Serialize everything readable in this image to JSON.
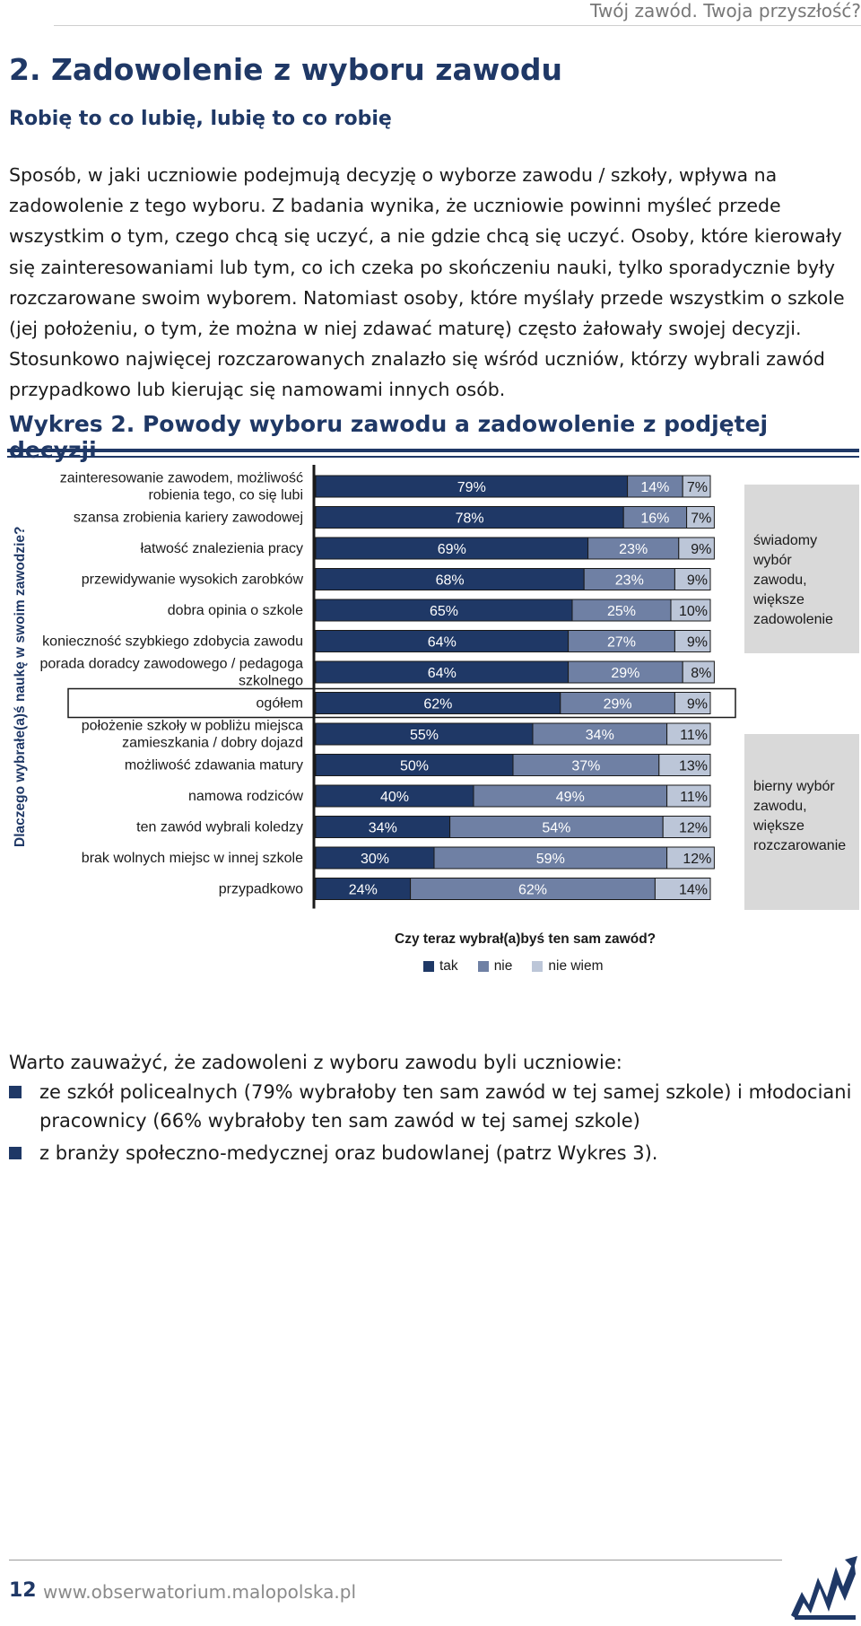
{
  "running_head": "Twój zawód. Twoja przyszłość?",
  "section_title": "2. Zadowolenie z wyboru zawodu",
  "section_subtitle": "Robię to co lubię, lubię to co robię",
  "intro_paragraph": "Sposób, w jaki uczniowie podejmują decyzję o wyborze zawodu / szkoły, wpływa na zadowolenie z tego wyboru. Z badania wynika, że uczniowie powinni myśleć przede wszystkim o tym, czego chcą się uczyć, a nie gdzie chcą się uczyć. Osoby, które kierowały się zainteresowaniami lub tym, co ich czeka po skończeniu nauki, tylko sporadycznie były rozczarowane swoim wyborem. Natomiast osoby, które myślały przede wszystkim o szkole (jej położeniu, o tym, że można w niej zdawać maturę) często żałowały swojej decyzji. Stosunkowo najwięcej rozczarowanych znalazło się wśród uczniów, którzy wybrali zawód przypadkowo lub kierując się namowami innych osób.",
  "figure_title": "Wykres 2. Powody wyboru zawodu a zadowolenie z podjętej decyzji",
  "chart_data": {
    "type": "bar",
    "orientation": "horizontal",
    "stacked": true,
    "y_axis_title": "Dlaczego wybrałe(a)ś naukę w swoim zawodzie?",
    "categories": [
      "zainteresowanie zawodem, możliwość robienia tego, co się lubi",
      "szansa zrobienia kariery zawodowej",
      "łatwość znalezienia pracy",
      "przewidywanie wysokich zarobków",
      "dobra opinia o szkole",
      "konieczność szybkiego zdobycia zawodu",
      "porada doradcy zawodowego / pedagoga szkolnego",
      "ogółem",
      "położenie szkoły w pobliżu miejsca zamieszkania / dobry dojazd",
      "możliwość zdawania matury",
      "namowa rodziców",
      "ten zawód wybrali koledzy",
      "brak wolnych miejsc w innej szkole",
      "przypadkowo"
    ],
    "category_lines": [
      [
        "zainteresowanie zawodem, możliwość",
        "robienia tego, co się lubi"
      ],
      [
        "szansa zrobienia kariery zawodowej"
      ],
      [
        "łatwość znalezienia pracy"
      ],
      [
        "przewidywanie wysokich zarobków"
      ],
      [
        "dobra opinia o szkole"
      ],
      [
        "konieczność szybkiego zdobycia zawodu"
      ],
      [
        "porada doradcy zawodowego / pedagoga",
        "szkolnego"
      ],
      [
        "ogółem"
      ],
      [
        "położenie szkoły w pobliżu miejsca",
        "zamieszkania / dobry dojazd"
      ],
      [
        "możliwość zdawania matury"
      ],
      [
        "namowa rodziców"
      ],
      [
        "ten zawód wybrali koledzy"
      ],
      [
        "brak wolnych miejsc w innej szkole"
      ],
      [
        "przypadkowo"
      ]
    ],
    "highlighted_category": "ogółem",
    "series": [
      {
        "name": "tak",
        "color": "#1f3866",
        "values": [
          79,
          78,
          69,
          68,
          65,
          64,
          64,
          62,
          55,
          50,
          40,
          34,
          30,
          24
        ]
      },
      {
        "name": "nie",
        "color": "#6f80a4",
        "values": [
          14,
          16,
          23,
          23,
          25,
          27,
          29,
          29,
          34,
          37,
          49,
          54,
          59,
          62
        ]
      },
      {
        "name": "nie wiem",
        "color": "#bcc6d8",
        "values": [
          7,
          7,
          9,
          9,
          10,
          9,
          8,
          9,
          11,
          13,
          11,
          12,
          12,
          14
        ]
      }
    ],
    "xlim": [
      0,
      100
    ],
    "unit": "%",
    "legend_title": "Czy teraz wybrał(a)byś ten sam zawód?",
    "legend_position": "bottom",
    "grid": false,
    "annotations": [
      "świadomy wybór zawodu, większe zadowolenie",
      "bierny wybór zawodu, większe rozczarowanie"
    ]
  },
  "side_boxes": {
    "top": [
      "świadomy",
      "wybór",
      "zawodu,",
      "większe",
      "zadowolenie"
    ],
    "bottom": [
      "bierny wybór",
      "zawodu,",
      "większe",
      "rozczarowanie"
    ]
  },
  "after_chart": {
    "lead": "Warto zauważyć, że zadowoleni z wyboru zawodu byli uczniowie:",
    "bullets": [
      "ze szkół policealnych (79% wybrałoby ten sam zawód w tej samej szkole) i młodociani pracownicy (66% wybrałoby ten sam zawód w tej samej szkole)",
      "z branży społeczno-medycznej oraz budowlanej (patrz Wykres 3)."
    ]
  },
  "footer": {
    "page_number": "12",
    "url": "www.obserwatorium.malopolska.pl"
  }
}
